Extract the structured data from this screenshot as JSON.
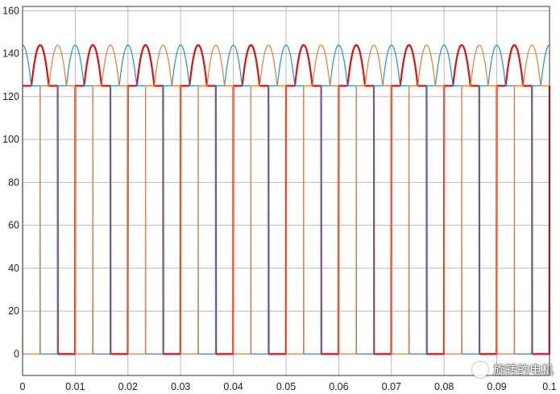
{
  "chart_data": {
    "type": "line",
    "title": "",
    "xlabel": "",
    "ylabel": "",
    "xlim": [
      0,
      0.1
    ],
    "ylim": [
      -10,
      162
    ],
    "x_ticks": [
      "0",
      "0.01",
      "0.02",
      "0.03",
      "0.04",
      "0.05",
      "0.06",
      "0.07",
      "0.08",
      "0.09",
      "0.1"
    ],
    "y_ticks": [
      "0",
      "20",
      "40",
      "60",
      "80",
      "100",
      "120",
      "140",
      "160"
    ],
    "grid": true,
    "waveform": {
      "description": "rectified three-phase ripple (each phase conducts 1/3 of the period as the top two segments of a six-pulse envelope)",
      "period": 0.02,
      "peak": 144,
      "ripple_min": 125,
      "zero_level": 0
    },
    "series": [
      {
        "color": "#dd1010",
        "phase_deg": 240,
        "line_width": "thick"
      },
      {
        "color": "#1f8fd6",
        "phase_deg": 0,
        "line_width": "thin"
      },
      {
        "color": "#ef7a30",
        "phase_deg": 120,
        "line_width": "thin"
      }
    ],
    "colors": {
      "grid": "#b8b8b8",
      "axes": "#333333",
      "background": "#ffffff"
    }
  },
  "watermark": {
    "text": "旋转的电机",
    "icon": "wechat-logo-icon"
  }
}
